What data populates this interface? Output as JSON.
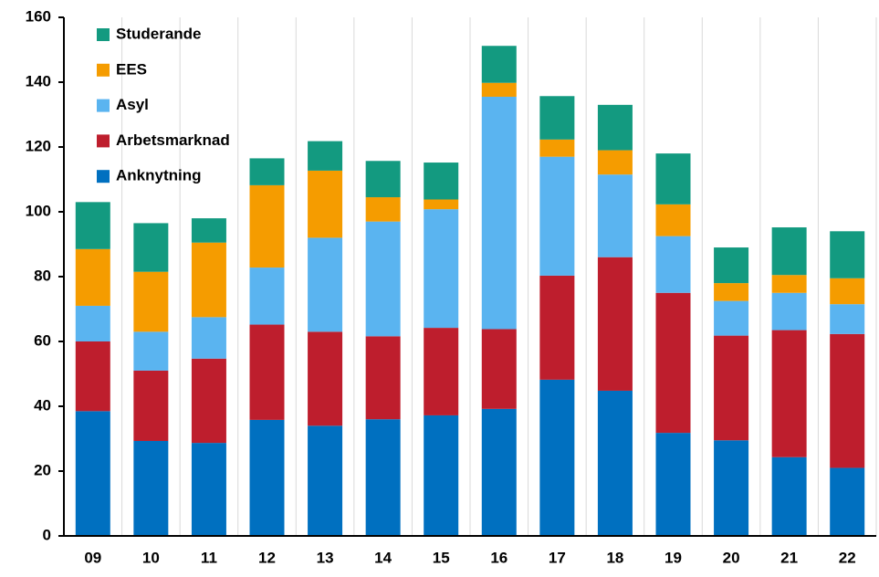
{
  "chart_data": {
    "type": "stacked_bar",
    "categories": [
      "09",
      "10",
      "11",
      "12",
      "13",
      "14",
      "15",
      "16",
      "17",
      "18",
      "19",
      "20",
      "21",
      "22"
    ],
    "series": [
      {
        "name": "Anknytning",
        "color": "#0070c0",
        "values": [
          38.5,
          29.3,
          28.7,
          35.8,
          34,
          36,
          37.2,
          39.2,
          48.2,
          44.8,
          31.8,
          29.5,
          24.3,
          21
        ]
      },
      {
        "name": "Arbetsmarknad",
        "color": "#be1e2d",
        "values": [
          21.5,
          21.7,
          26,
          29.4,
          29,
          25.6,
          27,
          24.6,
          32.1,
          41.2,
          43.2,
          32.3,
          39.2,
          41.3
        ]
      },
      {
        "name": "Asyl",
        "color": "#5ab4f0",
        "values": [
          11,
          12,
          12.8,
          17.6,
          29,
          35.4,
          36.6,
          71.7,
          36.7,
          25.5,
          17.5,
          10.7,
          11.5,
          9.2
        ]
      },
      {
        "name": "EES",
        "color": "#f59c00",
        "values": [
          17.5,
          18.5,
          23,
          25.4,
          20.7,
          7.5,
          3,
          4.3,
          5.3,
          7.5,
          9.8,
          5.5,
          5.5,
          8
        ]
      },
      {
        "name": "Studerande",
        "color": "#139a80",
        "values": [
          14.5,
          15,
          7.5,
          8.3,
          9.1,
          11.2,
          11.4,
          11.4,
          13.4,
          14,
          15.7,
          11,
          14.7,
          14.5
        ]
      }
    ],
    "ylim": [
      0,
      160
    ],
    "yticks": [
      0,
      20,
      40,
      60,
      80,
      100,
      120,
      140,
      160
    ],
    "grid": true,
    "legend": "top-left"
  }
}
